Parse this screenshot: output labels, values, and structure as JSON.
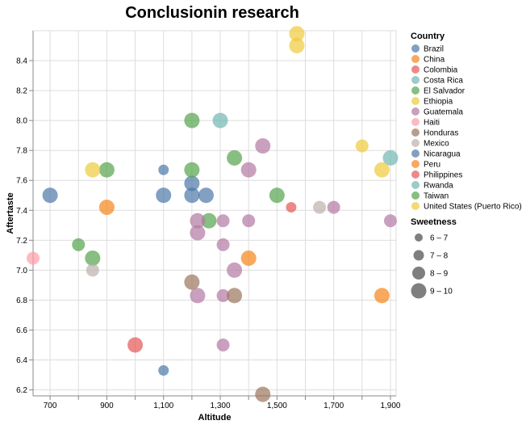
{
  "chart_data": {
    "type": "scatter",
    "title": "Conclusionin research",
    "xlabel": "Altitude",
    "ylabel": "Aftertaste",
    "xlim": [
      640,
      1920
    ],
    "ylim": [
      6.16,
      8.6
    ],
    "x_ticks": [
      700,
      900,
      1100,
      1300,
      1500,
      1700,
      1900
    ],
    "x_tick_labels": [
      "700",
      "900",
      "1,100",
      "1,300",
      "1,500",
      "1,700",
      "1,900"
    ],
    "x_minor_ticks": [
      800,
      1000,
      1200,
      1400,
      1600,
      1800
    ],
    "y_ticks": [
      6.2,
      6.4,
      6.6,
      6.8,
      7.0,
      7.2,
      7.4,
      7.6,
      7.8,
      8.0,
      8.2,
      8.4
    ],
    "y_tick_labels": [
      "6.2",
      "6.4",
      "6.6",
      "6.8",
      "7.0",
      "7.2",
      "7.4",
      "7.6",
      "7.8",
      "8.0",
      "8.2",
      "8.4"
    ],
    "grid": true,
    "legend_position": "right",
    "color_legend": {
      "title": "Country",
      "entries": [
        {
          "label": "Brazil",
          "color": "#4c78a8"
        },
        {
          "label": "China",
          "color": "#f58518"
        },
        {
          "label": "Colombia",
          "color": "#e45756"
        },
        {
          "label": "Costa Rica",
          "color": "#72b7b2"
        },
        {
          "label": "El Salvador",
          "color": "#54a24b"
        },
        {
          "label": "Ethiopia",
          "color": "#eeca3b"
        },
        {
          "label": "Guatemala",
          "color": "#b279a2"
        },
        {
          "label": "Haiti",
          "color": "#ff9da6"
        },
        {
          "label": "Honduras",
          "color": "#9d755d"
        },
        {
          "label": "Mexico",
          "color": "#bab0ac"
        },
        {
          "label": "Nicaragua",
          "color": "#4c78a8"
        },
        {
          "label": "Peru",
          "color": "#f58518"
        },
        {
          "label": "Philippines",
          "color": "#e45756"
        },
        {
          "label": "Rwanda",
          "color": "#72b7b2"
        },
        {
          "label": "Taiwan",
          "color": "#54a24b"
        },
        {
          "label": "United States (Puerto Rico)",
          "color": "#eeca3b"
        }
      ]
    },
    "size_legend": {
      "title": "Sweetness",
      "entries": [
        {
          "label": "6 – 7",
          "value": 6.5
        },
        {
          "label": "7 – 8",
          "value": 7.5
        },
        {
          "label": "8 – 9",
          "value": 8.5
        },
        {
          "label": "9 – 10",
          "value": 9.5
        }
      ]
    },
    "points": [
      {
        "x": 700,
        "y": 7.5,
        "color": "#4c78a8",
        "sweetness": 9.5
      },
      {
        "x": 1100,
        "y": 7.5,
        "color": "#4c78a8",
        "sweetness": 9.5
      },
      {
        "x": 1200,
        "y": 7.5,
        "color": "#4c78a8",
        "sweetness": 9.5
      },
      {
        "x": 1250,
        "y": 7.5,
        "color": "#4c78a8",
        "sweetness": 9.5
      },
      {
        "x": 1200,
        "y": 7.58,
        "color": "#4c78a8",
        "sweetness": 9.5
      },
      {
        "x": 1100,
        "y": 7.67,
        "color": "#4c78a8",
        "sweetness": 7.5
      },
      {
        "x": 1100,
        "y": 6.33,
        "color": "#4c78a8",
        "sweetness": 7.5
      },
      {
        "x": 900,
        "y": 7.42,
        "color": "#f58518",
        "sweetness": 9.5
      },
      {
        "x": 1400,
        "y": 7.08,
        "color": "#f58518",
        "sweetness": 9.5
      },
      {
        "x": 1870,
        "y": 6.83,
        "color": "#f58518",
        "sweetness": 9.5
      },
      {
        "x": 1000,
        "y": 6.5,
        "color": "#e45756",
        "sweetness": 9.5
      },
      {
        "x": 1550,
        "y": 7.42,
        "color": "#e45756",
        "sweetness": 7.5
      },
      {
        "x": 1300,
        "y": 8.0,
        "color": "#72b7b2",
        "sweetness": 9.5
      },
      {
        "x": 1900,
        "y": 7.75,
        "color": "#72b7b2",
        "sweetness": 9.5
      },
      {
        "x": 1200,
        "y": 8.0,
        "color": "#54a24b",
        "sweetness": 9.5
      },
      {
        "x": 1350,
        "y": 7.75,
        "color": "#54a24b",
        "sweetness": 9.5
      },
      {
        "x": 900,
        "y": 7.67,
        "color": "#54a24b",
        "sweetness": 9.5
      },
      {
        "x": 1200,
        "y": 7.67,
        "color": "#54a24b",
        "sweetness": 9.5
      },
      {
        "x": 1500,
        "y": 7.5,
        "color": "#54a24b",
        "sweetness": 9.5
      },
      {
        "x": 1260,
        "y": 7.33,
        "color": "#54a24b",
        "sweetness": 9.5
      },
      {
        "x": 800,
        "y": 7.17,
        "color": "#54a24b",
        "sweetness": 8.5
      },
      {
        "x": 850,
        "y": 7.08,
        "color": "#54a24b",
        "sweetness": 9.5
      },
      {
        "x": 1570,
        "y": 8.58,
        "color": "#eeca3b",
        "sweetness": 9.5
      },
      {
        "x": 1570,
        "y": 8.5,
        "color": "#eeca3b",
        "sweetness": 9.5
      },
      {
        "x": 1800,
        "y": 7.83,
        "color": "#eeca3b",
        "sweetness": 8.5
      },
      {
        "x": 850,
        "y": 7.67,
        "color": "#eeca3b",
        "sweetness": 9.5
      },
      {
        "x": 1870,
        "y": 7.67,
        "color": "#eeca3b",
        "sweetness": 9.5
      },
      {
        "x": 1450,
        "y": 7.83,
        "color": "#b279a2",
        "sweetness": 9.5
      },
      {
        "x": 1400,
        "y": 7.67,
        "color": "#b279a2",
        "sweetness": 9.5
      },
      {
        "x": 1700,
        "y": 7.42,
        "color": "#b279a2",
        "sweetness": 8.5
      },
      {
        "x": 1220,
        "y": 7.33,
        "color": "#b279a2",
        "sweetness": 9.5
      },
      {
        "x": 1310,
        "y": 7.33,
        "color": "#b279a2",
        "sweetness": 8.5
      },
      {
        "x": 1400,
        "y": 7.33,
        "color": "#b279a2",
        "sweetness": 8.5
      },
      {
        "x": 1900,
        "y": 7.33,
        "color": "#b279a2",
        "sweetness": 8.5
      },
      {
        "x": 1220,
        "y": 7.25,
        "color": "#b279a2",
        "sweetness": 9.5
      },
      {
        "x": 1310,
        "y": 7.17,
        "color": "#b279a2",
        "sweetness": 8.5
      },
      {
        "x": 1350,
        "y": 7.0,
        "color": "#b279a2",
        "sweetness": 9.5
      },
      {
        "x": 1220,
        "y": 6.83,
        "color": "#b279a2",
        "sweetness": 9.5
      },
      {
        "x": 1310,
        "y": 6.83,
        "color": "#b279a2",
        "sweetness": 8.5
      },
      {
        "x": 1310,
        "y": 6.5,
        "color": "#b279a2",
        "sweetness": 8.5
      },
      {
        "x": 640,
        "y": 7.08,
        "color": "#ff9da6",
        "sweetness": 8.5
      },
      {
        "x": 1200,
        "y": 6.92,
        "color": "#9d755d",
        "sweetness": 9.5
      },
      {
        "x": 1350,
        "y": 6.83,
        "color": "#9d755d",
        "sweetness": 9.5
      },
      {
        "x": 1450,
        "y": 6.17,
        "color": "#9d755d",
        "sweetness": 9.5
      },
      {
        "x": 850,
        "y": 7.0,
        "color": "#bab0ac",
        "sweetness": 8.5
      },
      {
        "x": 1650,
        "y": 7.42,
        "color": "#bab0ac",
        "sweetness": 8.5
      }
    ]
  }
}
